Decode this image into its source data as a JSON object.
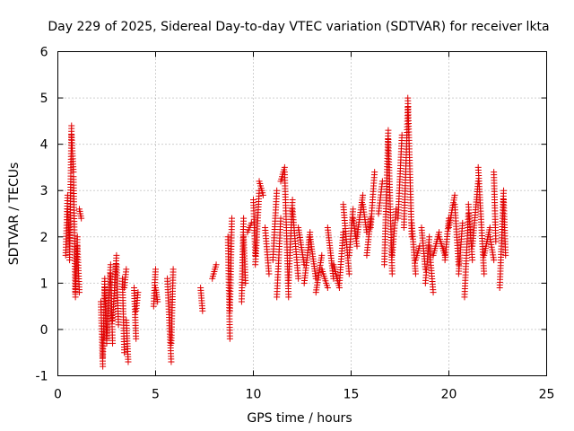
{
  "chart_data": {
    "type": "scatter",
    "title": "Day 229 of 2025, Sidereal Day-to-day VTEC variation (SDTVAR) for receiver lkta",
    "xlabel": "GPS time / hours",
    "ylabel": "SDTVAR / TECUs",
    "xlim": [
      0,
      25
    ],
    "ylim": [
      -1,
      6
    ],
    "x_ticks": [
      0,
      5,
      10,
      15,
      20,
      25
    ],
    "y_ticks": [
      -1,
      0,
      1,
      2,
      3,
      4,
      5,
      6
    ],
    "grid": true,
    "marker": "+",
    "color": "#e00000",
    "series": [
      {
        "name": "SDTVAR",
        "segments": [
          [
            0.4,
            1.6,
            0.5,
            2.9
          ],
          [
            0.5,
            2.6,
            0.6,
            1.8
          ],
          [
            0.6,
            1.5,
            0.7,
            4.4
          ],
          [
            0.7,
            4.2,
            0.8,
            3.4
          ],
          [
            0.8,
            3.3,
            0.9,
            0.7
          ],
          [
            0.9,
            0.8,
            1.0,
            2.0
          ],
          [
            1.0,
            1.8,
            1.1,
            0.8
          ],
          [
            1.1,
            2.6,
            1.2,
            2.4
          ],
          [
            2.2,
            0.6,
            2.3,
            -0.8
          ],
          [
            2.3,
            -0.6,
            2.4,
            1.1
          ],
          [
            2.4,
            0.9,
            2.5,
            -0.3
          ],
          [
            2.5,
            -0.2,
            2.7,
            1.4
          ],
          [
            2.7,
            1.2,
            2.8,
            -0.3
          ],
          [
            2.8,
            0.2,
            3.0,
            1.6
          ],
          [
            3.0,
            1.4,
            3.1,
            0.1
          ],
          [
            3.3,
            1.1,
            3.4,
            -0.5
          ],
          [
            3.4,
            0.9,
            3.5,
            1.3
          ],
          [
            3.5,
            0.2,
            3.6,
            -0.7
          ],
          [
            3.9,
            0.9,
            4.0,
            -0.2
          ],
          [
            4.0,
            0.4,
            4.1,
            0.8
          ],
          [
            4.9,
            0.5,
            5.0,
            1.3
          ],
          [
            5.0,
            0.9,
            5.1,
            0.6
          ],
          [
            5.6,
            1.1,
            5.8,
            -0.7
          ],
          [
            5.8,
            -0.3,
            5.9,
            1.3
          ],
          [
            7.3,
            0.9,
            7.4,
            0.4
          ],
          [
            7.9,
            1.1,
            8.1,
            1.4
          ],
          [
            8.7,
            2.0,
            8.8,
            -0.2
          ],
          [
            8.8,
            0.4,
            8.9,
            2.4
          ],
          [
            9.4,
            0.6,
            9.5,
            2.4
          ],
          [
            9.5,
            2.0,
            9.6,
            1.0
          ],
          [
            9.7,
            2.1,
            9.9,
            2.3
          ],
          [
            10.0,
            2.8,
            10.1,
            1.6
          ],
          [
            10.1,
            1.4,
            10.3,
            3.0
          ],
          [
            10.3,
            3.2,
            10.5,
            2.9
          ],
          [
            10.6,
            2.2,
            10.8,
            1.2
          ],
          [
            11.0,
            1.5,
            11.2,
            3.0
          ],
          [
            11.2,
            0.7,
            11.4,
            2.4
          ],
          [
            11.4,
            3.2,
            11.6,
            3.5
          ],
          [
            11.6,
            3.4,
            11.8,
            0.7
          ],
          [
            11.8,
            1.0,
            12.0,
            2.8
          ],
          [
            12.0,
            2.6,
            12.3,
            1.1
          ],
          [
            12.3,
            2.2,
            12.6,
            1.4
          ],
          [
            12.6,
            1.0,
            12.9,
            2.1
          ],
          [
            12.9,
            2.0,
            13.2,
            1.1
          ],
          [
            13.2,
            0.8,
            13.5,
            1.6
          ],
          [
            13.5,
            1.3,
            13.8,
            0.9
          ],
          [
            13.8,
            2.2,
            14.1,
            1.1
          ],
          [
            14.1,
            1.4,
            14.4,
            0.9
          ],
          [
            14.4,
            1.0,
            14.6,
            2.1
          ],
          [
            14.6,
            2.7,
            14.9,
            1.2
          ],
          [
            14.9,
            1.6,
            15.1,
            2.6
          ],
          [
            15.1,
            2.4,
            15.3,
            1.8
          ],
          [
            15.3,
            2.0,
            15.6,
            2.9
          ],
          [
            15.6,
            2.7,
            15.8,
            2.1
          ],
          [
            15.8,
            1.6,
            16.0,
            2.4
          ],
          [
            16.0,
            2.2,
            16.2,
            3.4
          ],
          [
            16.4,
            2.5,
            16.6,
            3.2
          ],
          [
            16.7,
            1.4,
            16.9,
            4.3
          ],
          [
            16.9,
            4.1,
            17.1,
            1.2
          ],
          [
            17.1,
            1.6,
            17.3,
            2.6
          ],
          [
            17.4,
            2.4,
            17.6,
            4.2
          ],
          [
            17.7,
            2.2,
            17.9,
            4.8
          ],
          [
            17.9,
            5.0,
            18.1,
            2.0
          ],
          [
            18.1,
            2.3,
            18.3,
            1.2
          ],
          [
            18.3,
            1.5,
            18.5,
            1.8
          ],
          [
            18.6,
            2.2,
            18.8,
            1.3
          ],
          [
            18.8,
            1.0,
            19.0,
            2.0
          ],
          [
            19.0,
            1.8,
            19.2,
            0.8
          ],
          [
            19.2,
            1.6,
            19.5,
            2.1
          ],
          [
            19.5,
            2.0,
            19.8,
            1.6
          ],
          [
            19.8,
            1.5,
            20.0,
            2.4
          ],
          [
            20.0,
            2.2,
            20.3,
            2.9
          ],
          [
            20.3,
            2.7,
            20.5,
            1.4
          ],
          [
            20.5,
            1.2,
            20.7,
            2.3
          ],
          [
            20.8,
            0.7,
            21.0,
            2.5
          ],
          [
            21.0,
            2.7,
            21.2,
            1.5
          ],
          [
            21.2,
            1.8,
            21.5,
            3.2
          ],
          [
            21.5,
            3.5,
            21.8,
            1.2
          ],
          [
            21.8,
            1.6,
            22.1,
            2.2
          ],
          [
            22.1,
            2.0,
            22.3,
            1.5
          ],
          [
            22.3,
            3.4,
            22.4,
            1.9
          ],
          [
            22.6,
            0.9,
            22.8,
            3.0
          ],
          [
            22.8,
            2.8,
            22.9,
            1.6
          ]
        ]
      }
    ]
  }
}
